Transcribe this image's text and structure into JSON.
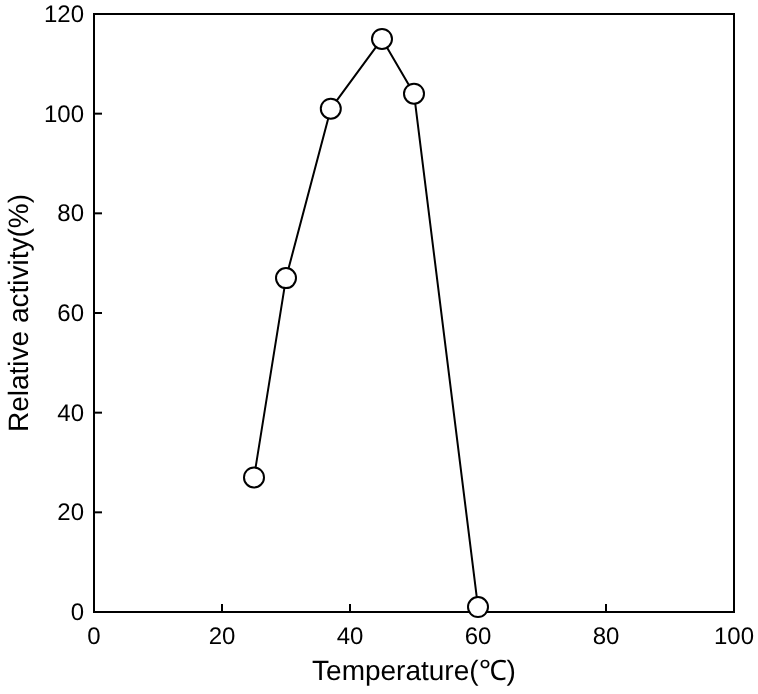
{
  "chart_data": {
    "type": "line",
    "xlabel": "Temperature(℃)",
    "ylabel": "Relative activity(%)",
    "x": [
      25,
      30,
      37,
      45,
      50,
      60
    ],
    "series": [
      {
        "color": "#000000",
        "values": [
          27,
          67,
          101,
          115,
          104,
          1
        ]
      }
    ],
    "xlim": [
      0,
      100
    ],
    "xticks": [
      0,
      20,
      40,
      60,
      80,
      100
    ],
    "ylim": [
      0,
      120
    ],
    "yticks": [
      0,
      20,
      40,
      60,
      80,
      100,
      120
    ],
    "marker": "circle",
    "line_style": "solid"
  }
}
